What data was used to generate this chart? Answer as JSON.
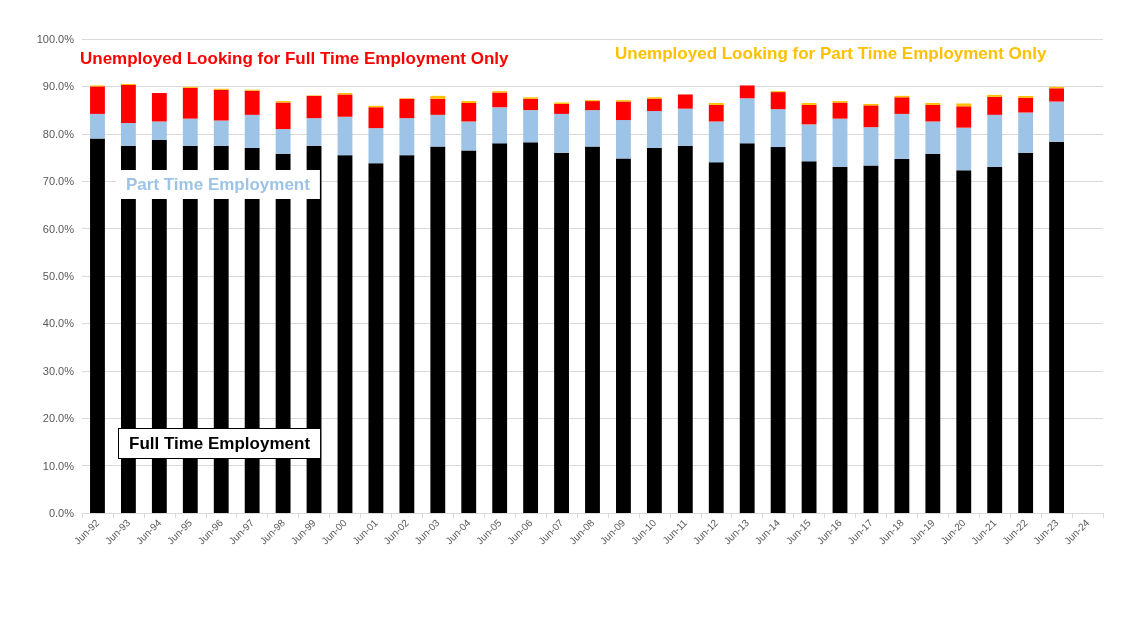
{
  "chart_data": {
    "type": "bar",
    "stacked": true,
    "legend": false,
    "grid": "y",
    "categories": [
      "Jun-92",
      "Jun-93",
      "Jun-94",
      "Jun-95",
      "Jun-96",
      "Jun-97",
      "Jun-98",
      "Jun-99",
      "Jun-00",
      "Jun-01",
      "Jun-02",
      "Jun-03",
      "Jun-04",
      "Jun-05",
      "Jun-06",
      "Jun-07",
      "Jun-08",
      "Jun-09",
      "Jun-10",
      "Jun-11",
      "Jun-12",
      "Jun-13",
      "Jun-14",
      "Jun-15",
      "Jun-16",
      "Jun-17",
      "Jun-18",
      "Jun-19",
      "Jun-20",
      "Jun-21",
      "Jun-22",
      "Jun-23",
      "Jun-24"
    ],
    "ylim": [
      0,
      100
    ],
    "yticks": [
      {
        "value": 0,
        "label": "0.0%"
      },
      {
        "value": 10,
        "label": "10.0%"
      },
      {
        "value": 20,
        "label": "20.0%"
      },
      {
        "value": 30,
        "label": "30.0%"
      },
      {
        "value": 40,
        "label": "40.0%"
      },
      {
        "value": 50,
        "label": "50.0%"
      },
      {
        "value": 60,
        "label": "60.0%"
      },
      {
        "value": 70,
        "label": "70.0%"
      },
      {
        "value": 80,
        "label": "80.0%"
      },
      {
        "value": 90,
        "label": "90.0%"
      },
      {
        "value": 100,
        "label": "100.0%"
      }
    ],
    "series": [
      {
        "name": "Full Time Employment",
        "color": "#000000",
        "values": [
          79,
          77.5,
          78.7,
          77.5,
          77.5,
          77,
          75.8,
          77.5,
          75.5,
          73.8,
          75.5,
          77.3,
          76.5,
          78,
          78.2,
          76,
          77.3,
          74.8,
          77,
          77.5,
          74,
          78,
          77.2,
          74.2,
          73,
          73.3,
          74.7,
          75.8,
          72.3,
          73,
          76,
          78.3,
          null
        ]
      },
      {
        "name": "Part Time Employment",
        "color": "#9dc3e6",
        "values": [
          5.2,
          4.8,
          3.9,
          5.7,
          5.3,
          7.0,
          5.2,
          5.8,
          8.1,
          7.4,
          7.8,
          6.7,
          6.1,
          7.6,
          6.8,
          8.2,
          7.7,
          8.1,
          7.8,
          7.8,
          8.6,
          9.5,
          8.0,
          7.8,
          10.2,
          8.1,
          9.5,
          6.8,
          9.0,
          11.0,
          8.5,
          8.5,
          null
        ]
      },
      {
        "name": "Unemployed Looking for Full Time Employment Only",
        "color": "#ff0000",
        "values": [
          5.8,
          8.0,
          6.0,
          6.5,
          6.5,
          5.1,
          5.6,
          4.7,
          4.7,
          4.4,
          4.1,
          3.4,
          3.9,
          3.1,
          2.4,
          2.1,
          1.9,
          3.9,
          2.6,
          3.0,
          3.5,
          2.7,
          3.6,
          4.1,
          3.4,
          4.6,
          3.5,
          3.5,
          4.5,
          3.8,
          3.1,
          2.8,
          null
        ]
      },
      {
        "name": "Unemployed Looking for Part Time Employment Only",
        "color": "#ffc000",
        "values": [
          0.2,
          0.2,
          null,
          0.2,
          0.2,
          0.2,
          0.3,
          0.1,
          0.3,
          0.3,
          0.1,
          0.6,
          0.4,
          0.3,
          0.3,
          0.3,
          0.2,
          0.3,
          0.3,
          null,
          0.4,
          null,
          0.2,
          0.4,
          0.3,
          0.3,
          0.3,
          0.4,
          0.6,
          0.4,
          0.4,
          0.3,
          null
        ]
      }
    ]
  }
}
